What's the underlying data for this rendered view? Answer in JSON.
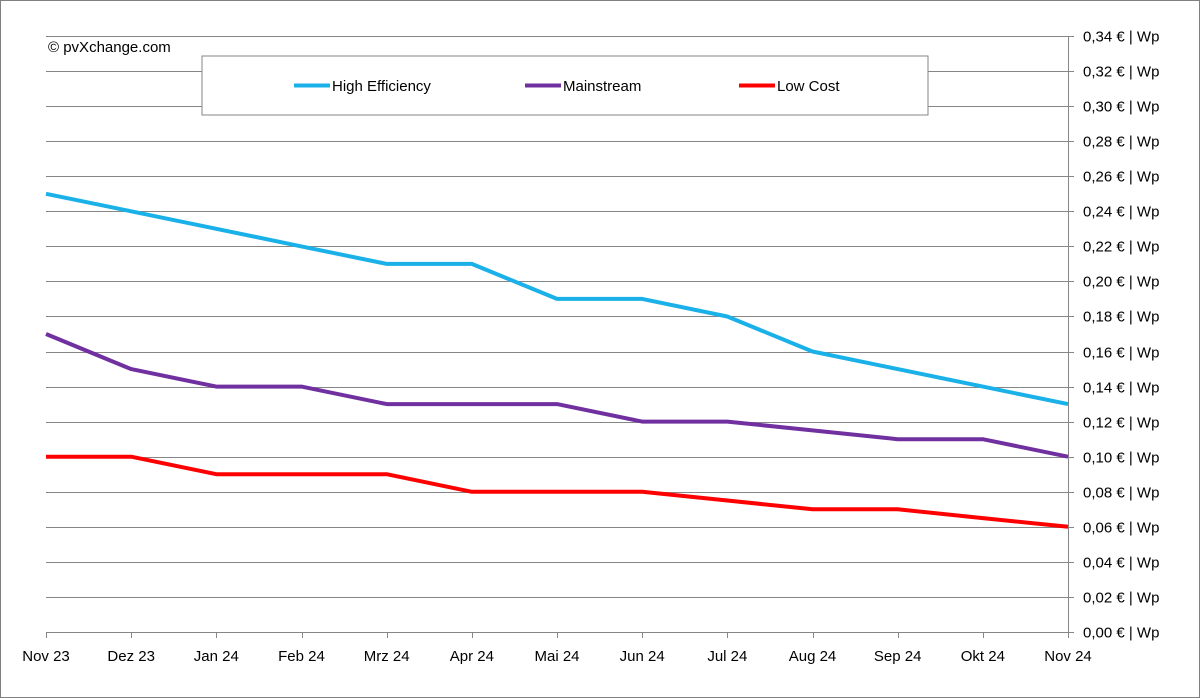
{
  "copyright": "© pvXchange.com",
  "chart_data": {
    "type": "line",
    "categories": [
      "Nov 23",
      "Dez 23",
      "Jan 24",
      "Feb 24",
      "Mrz 24",
      "Apr 24",
      "Mai 24",
      "Jun 24",
      "Jul 24",
      "Aug 24",
      "Sep 24",
      "Okt 24",
      "Nov 24"
    ],
    "series": [
      {
        "name": "High Efficiency",
        "color": "#1ab0e8",
        "values": [
          0.25,
          0.24,
          0.23,
          0.22,
          0.21,
          0.21,
          0.19,
          0.19,
          0.18,
          0.16,
          0.15,
          0.14,
          0.13
        ]
      },
      {
        "name": "Mainstream",
        "color": "#7030a0",
        "values": [
          0.17,
          0.15,
          0.14,
          0.14,
          0.13,
          0.13,
          0.13,
          0.12,
          0.12,
          0.115,
          0.11,
          0.11,
          0.1
        ]
      },
      {
        "name": "Low Cost",
        "color": "#ff0000",
        "values": [
          0.1,
          0.1,
          0.09,
          0.09,
          0.09,
          0.08,
          0.08,
          0.08,
          0.075,
          0.07,
          0.07,
          0.065,
          0.06
        ]
      }
    ],
    "ylim": [
      0,
      0.34
    ],
    "y_ticks": [
      {
        "value": 0.0,
        "label": "0,00 € | Wp"
      },
      {
        "value": 0.02,
        "label": "0,02 € | Wp"
      },
      {
        "value": 0.04,
        "label": "0,04 € | Wp"
      },
      {
        "value": 0.06,
        "label": "0,06 € | Wp"
      },
      {
        "value": 0.08,
        "label": "0,08 € | Wp"
      },
      {
        "value": 0.1,
        "label": "0,10 € | Wp"
      },
      {
        "value": 0.12,
        "label": "0,12 € | Wp"
      },
      {
        "value": 0.14,
        "label": "0,14 € | Wp"
      },
      {
        "value": 0.16,
        "label": "0,16 € | Wp"
      },
      {
        "value": 0.18,
        "label": "0,18 € | Wp"
      },
      {
        "value": 0.2,
        "label": "0,20 € | Wp"
      },
      {
        "value": 0.22,
        "label": "0,22 € | Wp"
      },
      {
        "value": 0.24,
        "label": "0,24 € | Wp"
      },
      {
        "value": 0.26,
        "label": "0,26 € | Wp"
      },
      {
        "value": 0.28,
        "label": "0,28 € | Wp"
      },
      {
        "value": 0.3,
        "label": "0,30 € | Wp"
      },
      {
        "value": 0.32,
        "label": "0,32 € | Wp"
      },
      {
        "value": 0.34,
        "label": "0,34 € | Wp"
      }
    ],
    "y_axis_position": "right",
    "grid": true,
    "legend_position": "top"
  }
}
